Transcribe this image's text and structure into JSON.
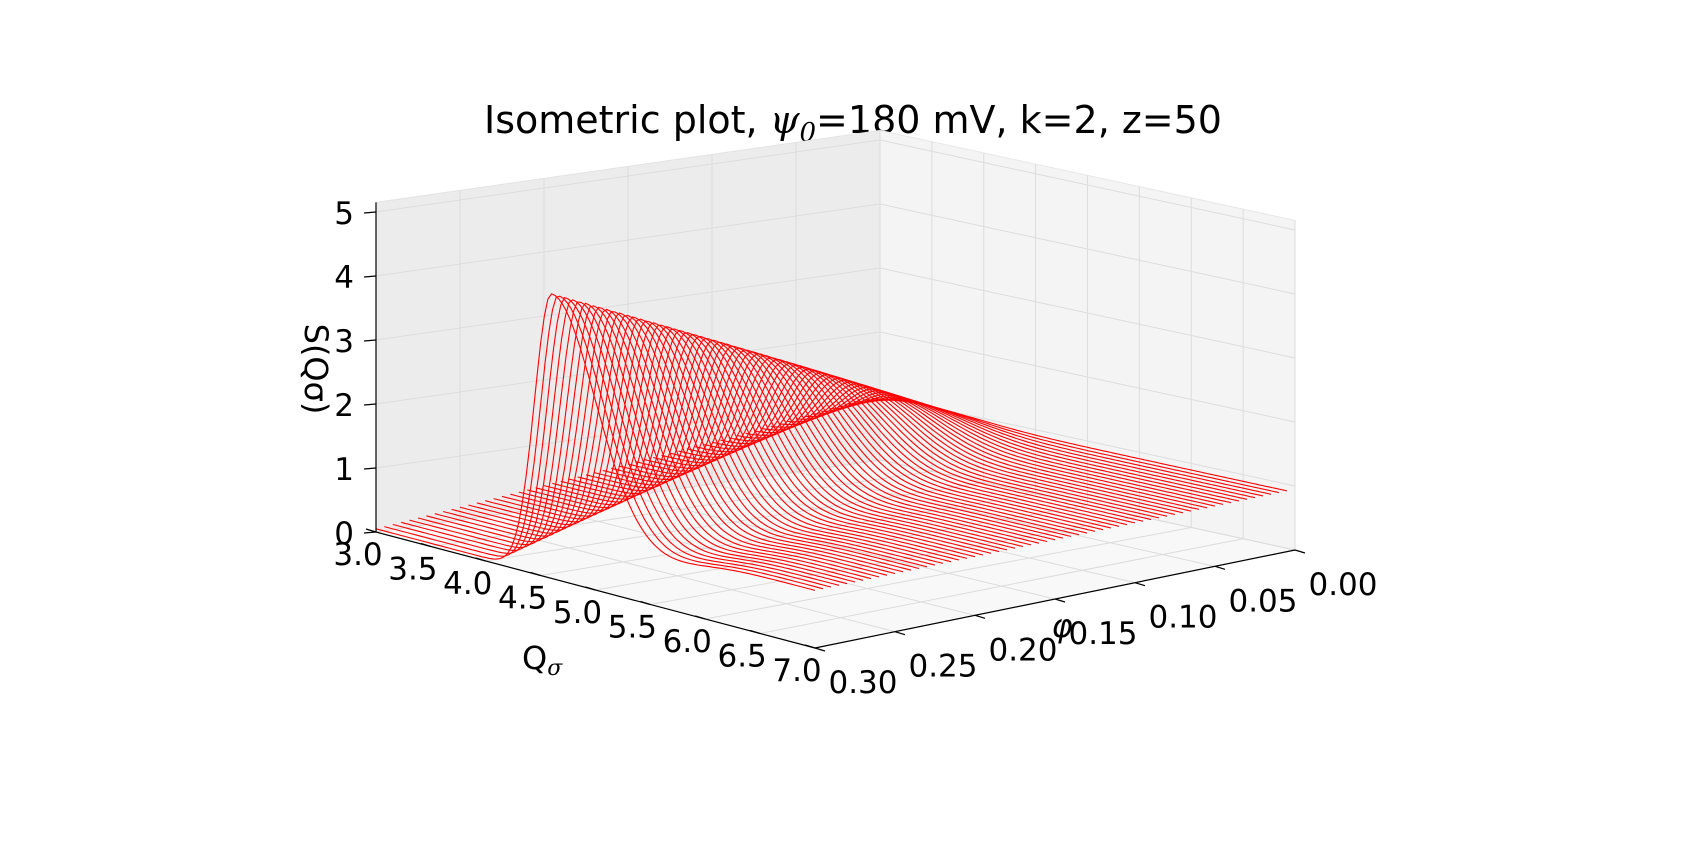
{
  "chart_data": {
    "type": "surface-wireframe",
    "title_parts": {
      "prefix": "Isometric plot, ",
      "symbol": "ψ",
      "subscript": "0",
      "suffix": "=180 mV, k=2, z=50"
    },
    "xlabel_symbol": "φ",
    "ylabel_parts": {
      "base": "Q",
      "subscript": "σ"
    },
    "zlabel": "S(Qσ)",
    "x_axis": {
      "name": "phi",
      "lim": [
        0.0,
        0.3
      ],
      "ticks": [
        0.0,
        0.05,
        0.1,
        0.15,
        0.2,
        0.25,
        0.3
      ],
      "tick_labels": [
        "0.00",
        "0.05",
        "0.10",
        "0.15",
        "0.20",
        "0.25",
        "0.30"
      ]
    },
    "y_axis": {
      "name": "Q_sigma",
      "lim": [
        3.0,
        7.0
      ],
      "ticks": [
        3.0,
        3.5,
        4.0,
        4.5,
        5.0,
        5.5,
        6.0,
        6.5,
        7.0
      ],
      "tick_labels": [
        "3.0",
        "3.5",
        "4.0",
        "4.5",
        "5.0",
        "5.5",
        "6.0",
        "6.5",
        "7.0"
      ]
    },
    "z_axis": {
      "name": "S",
      "lim": [
        0,
        5
      ],
      "ticks": [
        0,
        1,
        2,
        3,
        4,
        5
      ],
      "tick_labels": [
        "0",
        "1",
        "2",
        "3",
        "4",
        "5"
      ]
    },
    "surface": {
      "description_of_shape": "Structure factor S(Q_sigma) vs phi; peak height grows with phi",
      "phi_values": [
        0.005,
        0.3
      ],
      "q_values": [
        3.0,
        7.0
      ],
      "peak_q_at_phi_max": 4.6,
      "peak_height_at_phi_max": 4.45,
      "peak_height_at_phi_min": 1.0,
      "s_at_q_min_phi_max": 0.05,
      "s_at_q_max_phi_max": 0.9,
      "s_at_q_max_phi_min": 0.95
    },
    "grid": true,
    "color": "#ff0000",
    "view": {
      "elev": 15,
      "azim": 35
    }
  }
}
